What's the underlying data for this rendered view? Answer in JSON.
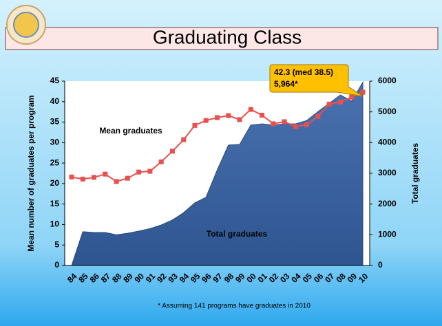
{
  "chart_data": {
    "type": "line",
    "title": "Graduating Class",
    "y_label": "Mean number of graduates per program",
    "y2_label": "Total graduates",
    "footnote": "* Assuming 141 programs have graduates in 2010",
    "annotations": [
      "Mean graduates",
      "Total graduates",
      "42.3 (med 38.5)",
      "5,964*"
    ],
    "categories": [
      "84",
      "85",
      "86",
      "87",
      "88",
      "89",
      "90",
      "91",
      "92",
      "93",
      "94",
      "95",
      "96",
      "97",
      "98",
      "99",
      "00",
      "01",
      "02",
      "03",
      "04",
      "05",
      "06",
      "07",
      "08",
      "09",
      "10"
    ],
    "series": [
      {
        "name": "Total graduates",
        "type": "area",
        "axis": "y2",
        "color": "#4a72b0",
        "values": [
          0,
          1100,
          1075,
          1075,
          1000,
          1050,
          1120,
          1200,
          1320,
          1480,
          1720,
          2040,
          2220,
          3110,
          3920,
          3940,
          4570,
          4610,
          4570,
          4610,
          4610,
          4720,
          5010,
          5280,
          5550,
          5350,
          5964
        ]
      },
      {
        "name": "Mean graduates",
        "type": "line",
        "axis": "y",
        "color": "#e8504e",
        "values": [
          21.6,
          21.1,
          21.5,
          22.3,
          20.5,
          21.3,
          22.8,
          23.0,
          25.3,
          27.9,
          30.7,
          34.2,
          35.4,
          36.1,
          36.6,
          35.6,
          38.1,
          36.7,
          34.6,
          35.1,
          33.9,
          34.4,
          36.4,
          39.4,
          39.9,
          41.1,
          42.3
        ]
      }
    ],
    "ylim": [
      0,
      45
    ],
    "yticks": [
      0,
      5,
      10,
      15,
      20,
      25,
      30,
      35,
      40,
      45
    ],
    "y2lim": [
      0,
      6000
    ],
    "y2ticks": [
      0,
      1000,
      2000,
      3000,
      4000,
      5000,
      6000
    ]
  }
}
